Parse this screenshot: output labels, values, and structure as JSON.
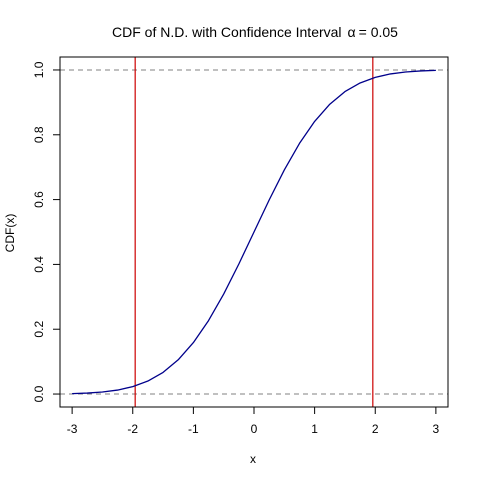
{
  "chart_data": {
    "type": "line",
    "title": "CDF of N.D. with Confidence Interval",
    "title_symbol": "α",
    "title_value": "= 0.05",
    "xlabel": "x",
    "ylabel": "CDF(x)",
    "xlim": [
      -3.2,
      3.2
    ],
    "ylim": [
      -0.04,
      1.04
    ],
    "x_ticks": [
      -3,
      -2,
      -1,
      0,
      1,
      2,
      3
    ],
    "x_tick_labels": [
      "-3",
      "-2",
      "-1",
      "0",
      "1",
      "2",
      "3"
    ],
    "y_ticks": [
      0,
      0.2,
      0.4,
      0.6,
      0.8,
      1
    ],
    "y_tick_labels": [
      "0.0",
      "0.2",
      "0.4",
      "0.6",
      "0.8",
      "1.0"
    ],
    "grid": false,
    "series": [
      {
        "color": "#00008b",
        "x": [
          -3.0,
          -2.75,
          -2.5,
          -2.25,
          -2.0,
          -1.75,
          -1.5,
          -1.25,
          -1.0,
          -0.75,
          -0.5,
          -0.25,
          0.0,
          0.25,
          0.5,
          0.75,
          1.0,
          1.25,
          1.5,
          1.75,
          2.0,
          2.25,
          2.5,
          2.75,
          3.0
        ],
        "y": [
          0.0013,
          0.003,
          0.0062,
          0.0122,
          0.0228,
          0.0401,
          0.0668,
          0.1056,
          0.1587,
          0.2266,
          0.3085,
          0.4013,
          0.5,
          0.5987,
          0.6915,
          0.7734,
          0.8413,
          0.8944,
          0.9332,
          0.9599,
          0.9772,
          0.9878,
          0.9938,
          0.997,
          0.9987
        ]
      }
    ],
    "reference_lines": {
      "horizontal": [
        {
          "y": 0,
          "color": "#808080",
          "style": "dashed"
        },
        {
          "y": 1,
          "color": "#808080",
          "style": "dashed"
        }
      ],
      "vertical": [
        {
          "x": -1.96,
          "color": "#cc0000"
        },
        {
          "x": 1.96,
          "color": "#cc0000"
        }
      ]
    }
  }
}
